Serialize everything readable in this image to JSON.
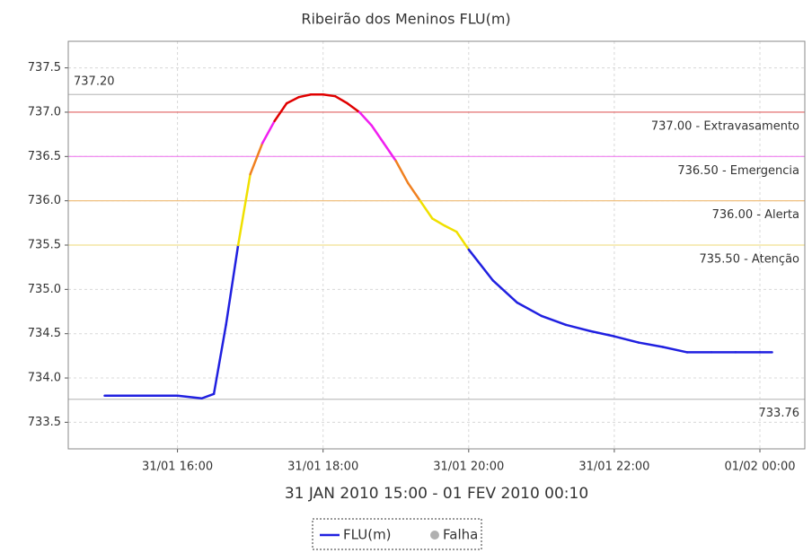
{
  "chart_data": {
    "type": "line",
    "title": "Ribeirão dos Meninos FLU(m)",
    "x_label": "31 JAN 2010 15:00 - 01 FEV 2010 00:10",
    "x": [
      "2010-01-31T15:00",
      "2010-01-31T16:00",
      "2010-01-31T16:20",
      "2010-01-31T16:30",
      "2010-01-31T16:40",
      "2010-01-31T16:50",
      "2010-01-31T17:00",
      "2010-01-31T17:10",
      "2010-01-31T17:20",
      "2010-01-31T17:30",
      "2010-01-31T17:40",
      "2010-01-31T17:50",
      "2010-01-31T18:00",
      "2010-01-31T18:10",
      "2010-01-31T18:20",
      "2010-01-31T18:30",
      "2010-01-31T18:40",
      "2010-01-31T18:50",
      "2010-01-31T19:00",
      "2010-01-31T19:10",
      "2010-01-31T19:20",
      "2010-01-31T19:30",
      "2010-01-31T19:40",
      "2010-01-31T19:50",
      "2010-01-31T20:00",
      "2010-01-31T20:20",
      "2010-01-31T20:40",
      "2010-01-31T21:00",
      "2010-01-31T21:20",
      "2010-01-31T21:40",
      "2010-01-31T22:00",
      "2010-01-31T22:20",
      "2010-01-31T22:40",
      "2010-01-31T23:00",
      "2010-01-31T23:20",
      "2010-01-31T23:40",
      "2010-02-01T00:00",
      "2010-02-01T00:10"
    ],
    "series": [
      {
        "name": "FLU(m)",
        "color": "#2020e0",
        "values": [
          733.8,
          733.8,
          733.77,
          733.82,
          734.6,
          735.5,
          736.3,
          736.65,
          736.9,
          737.1,
          737.17,
          737.2,
          737.2,
          737.18,
          737.1,
          737.0,
          736.85,
          736.65,
          736.45,
          736.2,
          736.0,
          735.8,
          735.72,
          735.65,
          735.45,
          735.1,
          734.85,
          734.7,
          734.6,
          734.53,
          734.47,
          734.4,
          734.35,
          734.29,
          734.29,
          734.29,
          734.29,
          734.29
        ]
      }
    ],
    "legend_extra": {
      "name": "Falha",
      "color": "#b0b0b0"
    },
    "thresholds": [
      {
        "value": 737.0,
        "label": "737.00 - Extravasamento",
        "color": "#e06060",
        "mark_color": "#e00000"
      },
      {
        "value": 736.5,
        "label": "736.50 - Emergencia",
        "color": "#f080f0",
        "mark_color": "#f020f0"
      },
      {
        "value": 736.0,
        "label": "736.00 - Alerta",
        "color": "#f0c080",
        "mark_color": "#f08020"
      },
      {
        "value": 735.5,
        "label": "735.50 - Atenção",
        "color": "#f0e090",
        "mark_color": "#f0e000"
      }
    ],
    "reference_lines": [
      {
        "value": 737.2,
        "label": "737.20",
        "color": "#c0c0c0",
        "position": "left"
      },
      {
        "value": 733.76,
        "label": "733.76",
        "color": "#c0c0c0",
        "position": "right"
      }
    ],
    "xlim": [
      "2010-01-31T14:30",
      "2010-02-01T00:37"
    ],
    "xticks": [
      {
        "value": "2010-01-31T16:00",
        "label": "31/01 16:00"
      },
      {
        "value": "2010-01-31T18:00",
        "label": "31/01 18:00"
      },
      {
        "value": "2010-01-31T20:00",
        "label": "31/01 20:00"
      },
      {
        "value": "2010-01-31T22:00",
        "label": "31/01 22:00"
      },
      {
        "value": "2010-02-01T00:00",
        "label": "01/02 00:00"
      }
    ],
    "ylim": [
      733.2,
      737.8
    ],
    "yticks": [
      733.5,
      {
        "value": 734,
        "label": "734.0"
      },
      734.5,
      {
        "value": 735,
        "label": "735.0"
      },
      735.5,
      {
        "value": 736,
        "label": "736.0"
      },
      736.5,
      {
        "value": 737,
        "label": "737.0"
      },
      737.5
    ],
    "grid": true
  }
}
